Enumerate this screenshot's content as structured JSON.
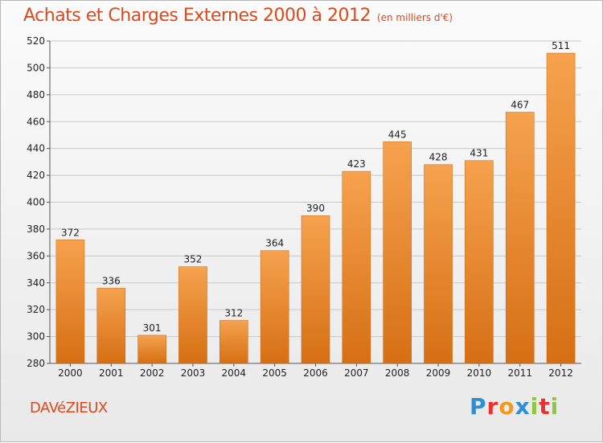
{
  "header": {
    "title": "Achats et Charges Externes 2000 à 2012",
    "unit": "(en milliers d'€)"
  },
  "footer": {
    "commune": "DAVéZIEUX",
    "logo_letters": [
      "P",
      "r",
      "o",
      "x",
      "i",
      "t",
      "i"
    ],
    "logo_colors": [
      "#2e8fd6",
      "#e8322d",
      "#f29a1f",
      "#2e8fd6",
      "#8dc63f",
      "#e8322d",
      "#8dc63f"
    ]
  },
  "colors": {
    "bar_top": "#f6a24e",
    "bar_bottom": "#d66f14",
    "accent": "#d94a1e"
  },
  "chart_data": {
    "type": "bar",
    "categories": [
      "2000",
      "2001",
      "2002",
      "2003",
      "2004",
      "2005",
      "2006",
      "2007",
      "2008",
      "2009",
      "2010",
      "2011",
      "2012"
    ],
    "values": [
      372,
      336,
      301,
      352,
      312,
      364,
      390,
      423,
      445,
      428,
      431,
      467,
      511
    ],
    "title": "Achats et Charges Externes 2000 à 2012",
    "ylim": [
      280,
      520
    ],
    "yticks": [
      280,
      300,
      320,
      340,
      360,
      380,
      400,
      420,
      440,
      460,
      480,
      500,
      520
    ],
    "grid": true
  }
}
